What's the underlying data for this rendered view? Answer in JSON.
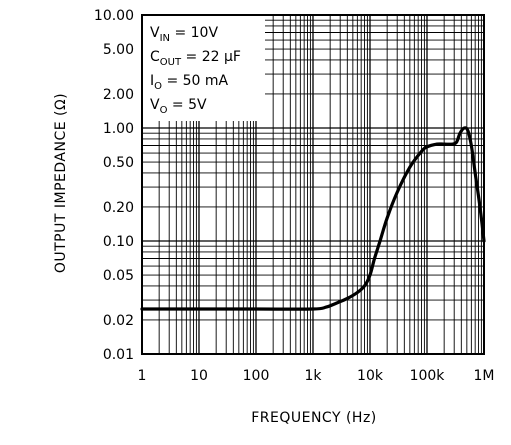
{
  "chart_data": {
    "type": "line",
    "title": "",
    "xlabel": "FREQUENCY (Hz)",
    "ylabel": "OUTPUT IMPEDANCE (Ω)",
    "x_scale": "log",
    "y_scale": "log",
    "xlim": [
      1,
      1000000
    ],
    "ylim": [
      0.01,
      10
    ],
    "grid": true,
    "x_ticks": [
      {
        "value": 1,
        "label": "1"
      },
      {
        "value": 10,
        "label": "10"
      },
      {
        "value": 100,
        "label": "100"
      },
      {
        "value": 1000,
        "label": "1k"
      },
      {
        "value": 10000,
        "label": "10k"
      },
      {
        "value": 100000,
        "label": "100k"
      },
      {
        "value": 1000000,
        "label": "1M"
      }
    ],
    "y_ticks": [
      {
        "value": 10,
        "label": "10.00"
      },
      {
        "value": 5,
        "label": "5.00"
      },
      {
        "value": 2,
        "label": "2.00"
      },
      {
        "value": 1,
        "label": "1.00"
      },
      {
        "value": 0.5,
        "label": "0.50"
      },
      {
        "value": 0.2,
        "label": "0.20"
      },
      {
        "value": 0.1,
        "label": "0.10"
      },
      {
        "value": 0.05,
        "label": "0.05"
      },
      {
        "value": 0.02,
        "label": "0.02"
      },
      {
        "value": 0.01,
        "label": "0.01"
      }
    ],
    "annotations": [
      {
        "sym": "V",
        "sub": "IN",
        "rest": " = 10V"
      },
      {
        "sym": "C",
        "sub": "OUT",
        "rest": " = 22 μF"
      },
      {
        "sym": "I",
        "sub": "O",
        "rest": " = 50 mA"
      },
      {
        "sym": "V",
        "sub": "O",
        "rest": " = 5V"
      }
    ],
    "series": [
      {
        "x": [
          1,
          10,
          100,
          1000,
          1700,
          2500,
          4000,
          6000,
          8000,
          10000,
          12000,
          15000,
          20000,
          30000,
          50000,
          80000,
          100000,
          150000,
          200000,
          280000,
          330000,
          380000,
          450000,
          520000,
          600000,
          700000,
          850000,
          1000000
        ],
        "y": [
          0.025,
          0.025,
          0.025,
          0.025,
          0.026,
          0.028,
          0.031,
          0.035,
          0.04,
          0.05,
          0.07,
          0.1,
          0.16,
          0.27,
          0.45,
          0.62,
          0.68,
          0.72,
          0.72,
          0.72,
          0.75,
          0.9,
          1.0,
          0.95,
          0.7,
          0.4,
          0.2,
          0.1
        ]
      }
    ]
  }
}
